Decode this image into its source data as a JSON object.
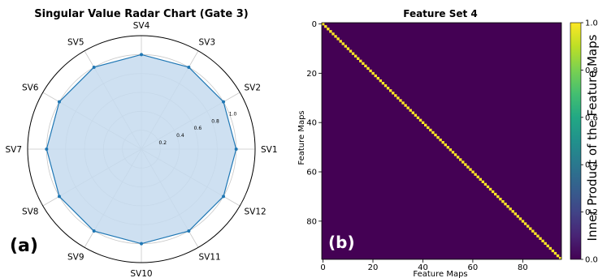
{
  "panel_labels": {
    "a": "(a)",
    "b": "(b)"
  },
  "chart_data": [
    {
      "type": "radar",
      "title": "Singular Value Radar Chart (Gate 3)",
      "categories": [
        "SV1",
        "SV2",
        "SV3",
        "SV4",
        "SV5",
        "SV6",
        "SV7",
        "SV8",
        "SV9",
        "SV10",
        "SV11",
        "SV12"
      ],
      "values": [
        1.0,
        1.0,
        1.0,
        1.0,
        1.0,
        1.0,
        1.0,
        1.0,
        1.0,
        1.0,
        1.0,
        1.0
      ],
      "radial_ticks": [
        "0.2",
        "0.4",
        "0.6",
        "0.8",
        "1.0"
      ],
      "radial_tick_values": [
        0.2,
        0.4,
        0.6,
        0.8,
        1.0
      ],
      "rlim": [
        0,
        1.2
      ],
      "grid": true,
      "colors": {
        "line": "#1f77b4",
        "fill": "#c6dbee",
        "grid": "#c8c8c8"
      }
    },
    {
      "type": "heatmap",
      "title": "Feature Set 4",
      "xlabel": "Feature Maps",
      "ylabel": "Feature Maps",
      "size": 96,
      "matrix_description": "identity",
      "diagonal_value": 1.0,
      "off_diagonal_value": 0.0,
      "x_ticks": [
        "0",
        "20",
        "40",
        "60",
        "80"
      ],
      "y_ticks": [
        "0",
        "20",
        "40",
        "60",
        "80"
      ],
      "tick_values": [
        0,
        20,
        40,
        60,
        80
      ],
      "colorbar": {
        "label": "Inner Product of the Feature Maps",
        "ticks": [
          "0.0",
          "0.2",
          "0.4",
          "0.6",
          "0.8",
          "1.0"
        ],
        "tick_values": [
          0.0,
          0.2,
          0.4,
          0.6,
          0.8,
          1.0
        ],
        "range": [
          0,
          1
        ],
        "colormap": "viridis"
      },
      "colors": {
        "low": "#440154",
        "high": "#fde725"
      }
    }
  ]
}
